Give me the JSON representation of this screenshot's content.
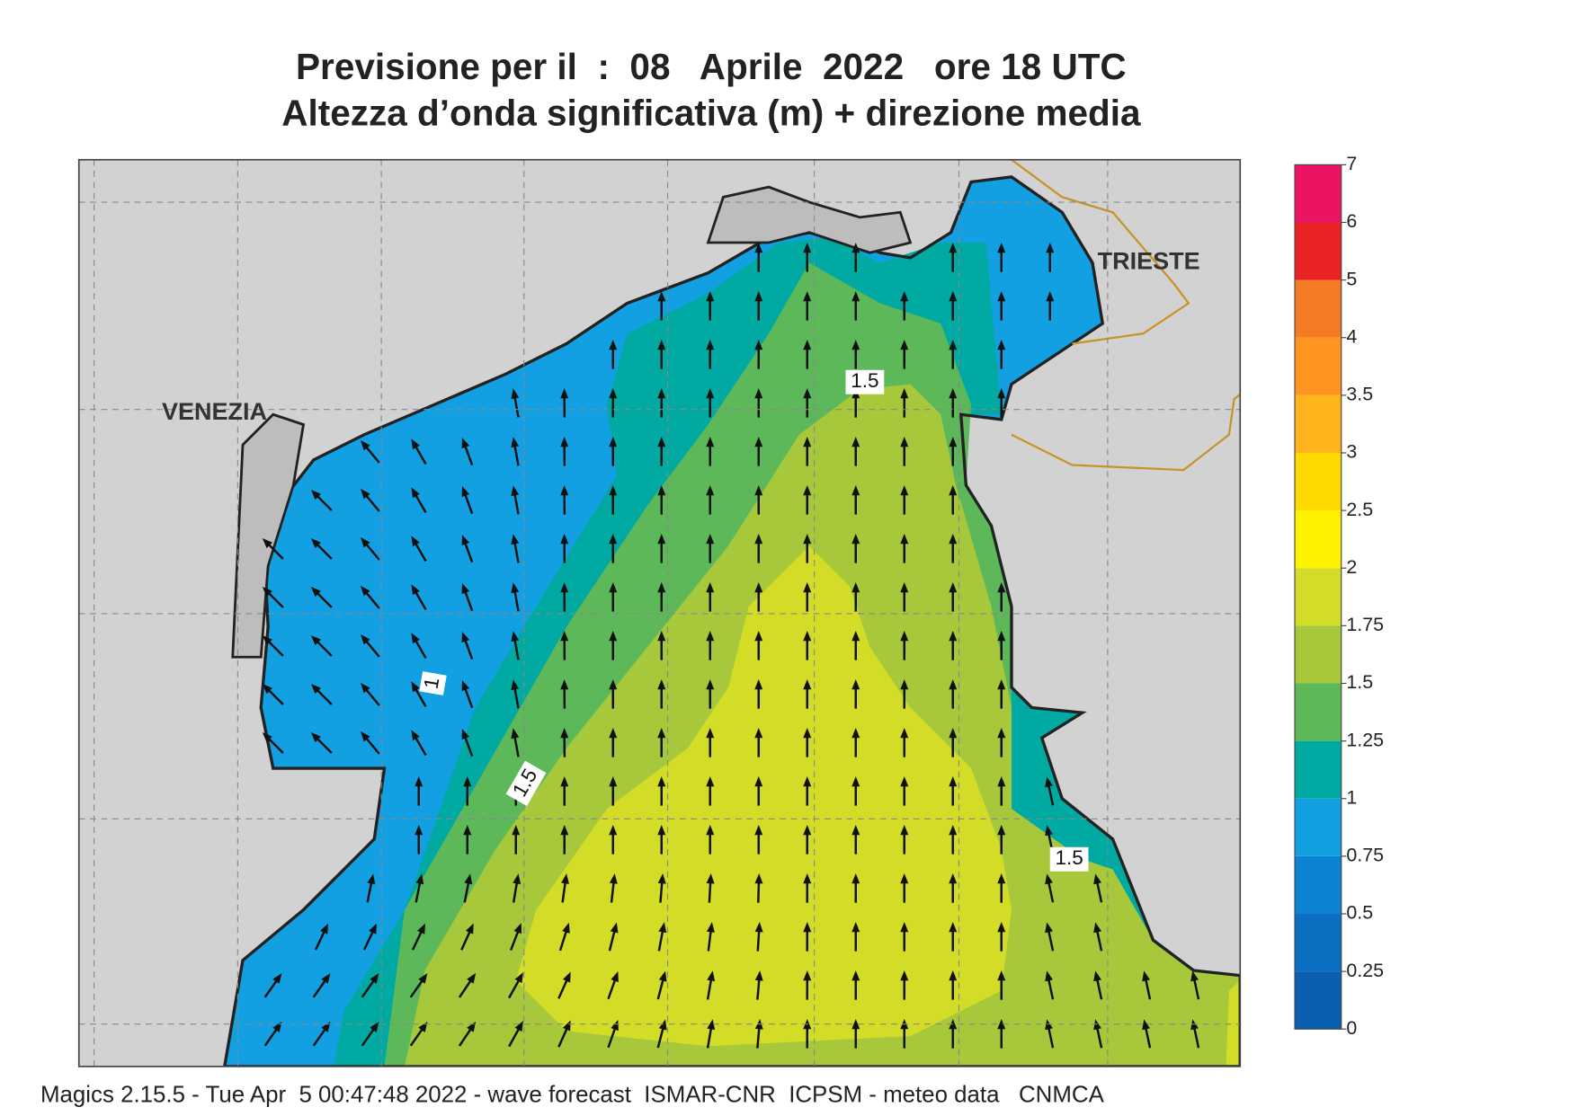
{
  "title": [
    "Previsione per il  :  08   Aprile  2022   ore 18 UTC",
    "Altezza d’onda significativa (m) + direzione media"
  ],
  "places": [
    "VENEZIA",
    "TRIESTE"
  ],
  "contour_labels": [
    1.5,
    1,
    1.5,
    1.5
  ],
  "colorbar": {
    "ticks": [
      0,
      0.25,
      0.5,
      0.75,
      1,
      1.25,
      1.5,
      1.75,
      2,
      2.5,
      3,
      3.5,
      4,
      5,
      6,
      7
    ],
    "colors": [
      "#0a5fb0",
      "#0a6fc0",
      "#0c82d2",
      "#12a0e2",
      "#00a9a2",
      "#5db85a",
      "#a6c83a",
      "#d3dc26",
      "#fff200",
      "#ffd800",
      "#ffb41c",
      "#ff9520",
      "#f47a24",
      "#e92226",
      "#ea1462"
    ]
  },
  "footer": "Magics 2.15.5 - Tue Apr  5 00:47:48 2022 - wave forecast  ISMAR-CNR  ICPSM - meteo data   CNMCA"
}
